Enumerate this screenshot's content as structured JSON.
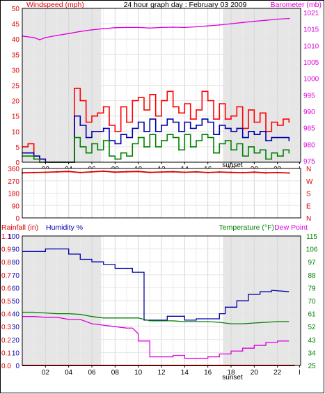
{
  "colors": {
    "wind_speed": "#ff0000",
    "wind_avg": "#0000aa",
    "wind_low": "#008000",
    "barometer": "#dd00dd",
    "direction": "#dd0000",
    "rainfall": "#dd0000",
    "humidity": "#0000aa",
    "temperature": "#008000",
    "dewpoint": "#dd00dd",
    "night_band": "#e6e6e6",
    "grid": "#e8e8e8"
  },
  "chart_data": [
    {
      "type": "line",
      "title": "24 hour graph day : February 03 2009",
      "ylabel_left": "Windspeed (mph)",
      "ylabel_right": "Barometer (mb)",
      "x_ticks": [
        "02",
        "04",
        "06",
        "08",
        "10",
        "12",
        "14",
        "16",
        "18",
        "20",
        "22",
        "I"
      ],
      "x_annotation": "sunset",
      "y_ticks_left": [
        "0",
        "5",
        "10",
        "15",
        "20",
        "25",
        "30",
        "35",
        "40",
        "45",
        "50"
      ],
      "ylim_left": [
        0,
        50
      ],
      "y_ticks_right": [
        "975",
        "980",
        "985",
        "990",
        "995",
        "1000",
        "1005",
        "1010",
        "1015",
        "1021"
      ],
      "ylim_right": [
        975,
        1025
      ],
      "grid": true,
      "series": [
        {
          "name": "Windspeed (mph)",
          "axis": "left",
          "x": [
            0,
            0.5,
            1,
            1.5,
            2,
            2.5,
            3,
            3.5,
            4,
            4.5,
            5,
            5.5,
            6,
            6.5,
            7,
            7.5,
            8,
            8.5,
            9,
            9.5,
            10,
            10.5,
            11,
            11.5,
            12,
            12.5,
            13,
            13.5,
            14,
            14.5,
            15,
            15.5,
            16,
            16.5,
            17,
            17.5,
            18,
            18.5,
            19,
            19.5,
            20,
            20.5,
            21,
            21.5,
            22,
            22.5,
            23
          ],
          "y": [
            5,
            6,
            2,
            1,
            0,
            0,
            0,
            0,
            0,
            24,
            20,
            13,
            15,
            16,
            18,
            12,
            10,
            18,
            13,
            20,
            21,
            17,
            22,
            15,
            20,
            23,
            18,
            16,
            19,
            14,
            17,
            23,
            20,
            14,
            19,
            14,
            15,
            18,
            11,
            17,
            13,
            16,
            10,
            13,
            12,
            14,
            13
          ]
        },
        {
          "name": "Average windspeed",
          "axis": "left",
          "x": [
            0,
            0.5,
            1,
            1.5,
            2,
            2.5,
            3,
            3.5,
            4,
            4.5,
            5,
            5.5,
            6,
            6.5,
            7,
            7.5,
            8,
            8.5,
            9,
            9.5,
            10,
            10.5,
            11,
            11.5,
            12,
            12.5,
            13,
            13.5,
            14,
            14.5,
            15,
            15.5,
            16,
            16.5,
            17,
            17.5,
            18,
            18.5,
            19,
            19.5,
            20,
            20.5,
            21,
            21.5,
            22,
            22.5,
            23
          ],
          "y": [
            3,
            3,
            2,
            1,
            0,
            0,
            0,
            0,
            0,
            15,
            12,
            8,
            10,
            10,
            11,
            7,
            6,
            9,
            8,
            11,
            13,
            10,
            14,
            10,
            12,
            14,
            13,
            10,
            13,
            11,
            12,
            14,
            13,
            9,
            12,
            11,
            10,
            11,
            8,
            10,
            9,
            10,
            7,
            8,
            8,
            8,
            7
          ]
        },
        {
          "name": "Low windspeed",
          "axis": "left",
          "x": [
            0,
            0.5,
            1,
            1.5,
            2,
            2.5,
            3,
            3.5,
            4,
            4.5,
            5,
            5.5,
            6,
            6.5,
            7,
            7.5,
            8,
            8.5,
            9,
            9.5,
            10,
            10.5,
            11,
            11.5,
            12,
            12.5,
            13,
            13.5,
            14,
            14.5,
            15,
            15.5,
            16,
            16.5,
            17,
            17.5,
            18,
            18.5,
            19,
            19.5,
            20,
            20.5,
            21,
            21.5,
            22,
            22.5,
            23
          ],
          "y": [
            2,
            2,
            1,
            0,
            0,
            0,
            0,
            0,
            0,
            8,
            5,
            3,
            6,
            4,
            7,
            2,
            1,
            3,
            2,
            6,
            8,
            5,
            9,
            5,
            7,
            9,
            8,
            4,
            9,
            5,
            7,
            9,
            8,
            3,
            6,
            7,
            4,
            6,
            2,
            5,
            3,
            4,
            1,
            3,
            2,
            4,
            3
          ]
        },
        {
          "name": "Barometer (mb)",
          "axis": "right",
          "x": [
            0,
            1,
            1.5,
            2,
            3,
            4,
            5,
            6,
            7,
            8,
            9,
            10,
            11,
            12,
            13,
            14,
            15,
            16,
            17,
            18,
            19,
            20,
            21,
            22,
            23
          ],
          "y": [
            1016,
            1015.5,
            1014.8,
            1015.5,
            1016.2,
            1016.8,
            1017.5,
            1018.0,
            1018.4,
            1018.7,
            1018.8,
            1018.8,
            1018.6,
            1018.8,
            1018.9,
            1018.8,
            1019.0,
            1019.3,
            1019.6,
            1020.0,
            1020.4,
            1020.8,
            1021.1,
            1021.5,
            1021.7
          ]
        }
      ]
    },
    {
      "type": "scatter",
      "ylabel_left": "",
      "y_ticks_left": [
        "0",
        "90",
        "180",
        "270",
        "360"
      ],
      "ylim": [
        0,
        360
      ],
      "y_ticks_right": [
        "N",
        "E",
        "S",
        "W",
        "N"
      ],
      "grid": true,
      "series": [
        {
          "name": "Wind direction",
          "x": [
            0,
            1,
            2,
            3,
            4,
            5,
            6,
            7,
            8,
            9,
            10,
            11,
            12,
            13,
            14,
            15,
            16,
            17,
            18,
            19,
            20,
            21,
            22,
            23
          ],
          "y": [
            328,
            330,
            332,
            335,
            338,
            330,
            335,
            340,
            333,
            336,
            338,
            331,
            334,
            336,
            332,
            335,
            330,
            334,
            331,
            329,
            333,
            328,
            330,
            327
          ]
        }
      ]
    },
    {
      "type": "line",
      "ylabel_left": "Rainfall (in)",
      "ylabel_left2": "Humidity %",
      "ylabel_right": "Temperature (°F)",
      "ylabel_right2": "Dew Point",
      "x_ticks": [
        "02",
        "04",
        "06",
        "08",
        "10",
        "12",
        "14",
        "16",
        "18",
        "20",
        "22",
        "I"
      ],
      "x_annotation": "sunset",
      "y_ticks_rain": [
        "0.0",
        "0.1",
        "0.2",
        "0.3",
        "0.4",
        "0.5",
        "0.6",
        "0.7",
        "0.8",
        "0.9",
        "1.1"
      ],
      "y_ticks_humidity": [
        "0",
        "10",
        "20",
        "30",
        "40",
        "50",
        "60",
        "70",
        "80",
        "90",
        "100"
      ],
      "ylim_humidity": [
        0,
        100
      ],
      "y_ticks_temp": [
        "25",
        "34",
        "43",
        "52",
        "61",
        "70",
        "79",
        "88",
        "97",
        "106",
        "115"
      ],
      "ylim_temp": [
        25,
        115
      ],
      "grid": true,
      "series": [
        {
          "name": "Humidity %",
          "axis": "humidity",
          "x": [
            0,
            2,
            2,
            4,
            4,
            5,
            5,
            6,
            6,
            7,
            7,
            8,
            8,
            9.5,
            9.5,
            10.5,
            10.5,
            12.5,
            12.5,
            14,
            14,
            15,
            15,
            17,
            17,
            17.5,
            17.5,
            18.5,
            18.5,
            19.5,
            19.5,
            20.5,
            20.5,
            21.5,
            21.5,
            23
          ],
          "y": [
            88,
            88,
            90,
            90,
            86,
            86,
            82,
            82,
            80,
            80,
            78,
            78,
            75,
            75,
            72,
            72,
            35,
            35,
            38,
            38,
            35,
            35,
            36,
            36,
            40,
            40,
            45,
            45,
            50,
            50,
            55,
            55,
            57,
            57,
            58,
            57
          ]
        },
        {
          "name": "Temperature (°F)",
          "axis": "temp",
          "x": [
            0,
            1,
            2,
            3,
            4,
            5,
            6,
            7,
            8,
            9,
            10,
            11,
            12,
            13,
            14,
            15,
            16,
            17,
            18,
            19,
            20,
            21,
            22,
            23
          ],
          "y": [
            62,
            62,
            61.5,
            61,
            61,
            60.5,
            59,
            58,
            58,
            58,
            58,
            56,
            56,
            56,
            55.5,
            55.5,
            55.5,
            55,
            54,
            54,
            54.5,
            55,
            55.5,
            55.5
          ]
        },
        {
          "name": "Dew Point",
          "axis": "temp",
          "x": [
            0,
            1,
            2,
            3,
            4,
            5,
            6,
            7,
            8,
            9,
            9.5,
            10,
            10,
            11,
            11,
            13,
            13,
            14,
            14,
            16,
            16,
            17,
            17,
            18,
            18,
            19,
            19,
            20,
            20,
            21,
            21,
            22,
            22,
            23
          ],
          "y": [
            59,
            59,
            58.5,
            58.5,
            57,
            57,
            54,
            53,
            52,
            51,
            51,
            47,
            42,
            42,
            31,
            31,
            32,
            32,
            30,
            30,
            31,
            31,
            33,
            33,
            35,
            35,
            37,
            37,
            39,
            39,
            41,
            41,
            42,
            42
          ]
        },
        {
          "name": "Rainfall (in)",
          "axis": "humidity",
          "x": [
            0,
            23.5
          ],
          "y": [
            0,
            0
          ]
        }
      ]
    }
  ]
}
